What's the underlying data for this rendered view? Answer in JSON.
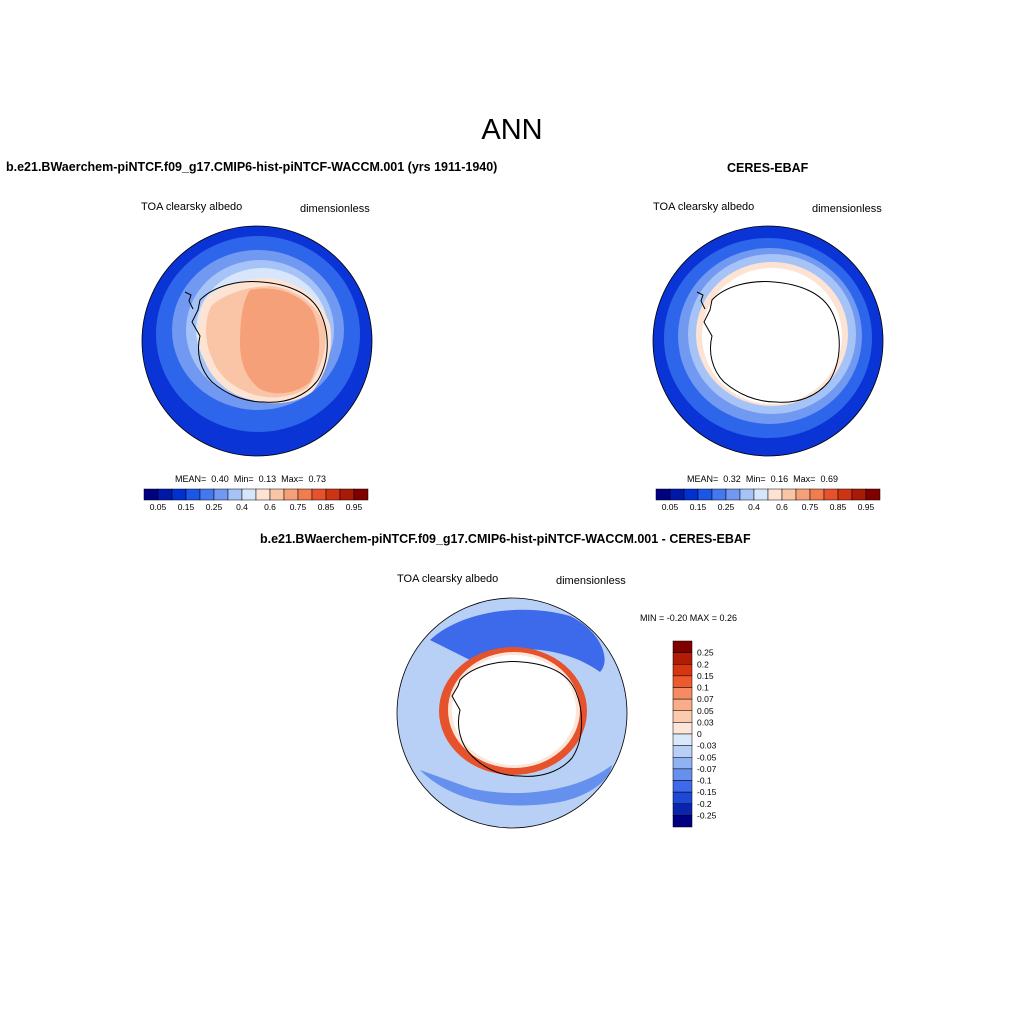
{
  "figure": {
    "title": "ANN"
  },
  "panels": [
    {
      "case_title": "b.e21.BWaerchem-piNTCF.f09_g17.CMIP6-hist-piNTCF-WACCM.001 (yrs 1911-1940)",
      "variable": "TOA clearsky albedo",
      "units": "dimensionless",
      "stats": {
        "mean_label": "MEAN=",
        "mean": "0.40",
        "min_label": "Min=",
        "min": "0.13",
        "max_label": "Max=",
        "max": "0.73"
      }
    },
    {
      "case_title": "CERES-EBAF",
      "variable": "TOA clearsky albedo",
      "units": "dimensionless",
      "stats": {
        "mean_label": "MEAN=",
        "mean": "0.32",
        "min_label": "Min=",
        "min": "0.16",
        "max_label": "Max=",
        "max": "0.69"
      }
    },
    {
      "case_title": "b.e21.BWaerchem-piNTCF.f09_g17.CMIP6-hist-piNTCF-WACCM.001 - CERES-EBAF",
      "variable": "TOA clearsky albedo",
      "units": "dimensionless",
      "stats_text": "MIN =  -0.20 MAX =   0.26"
    }
  ],
  "colorbars": {
    "horizontal": {
      "colors": [
        "#000080",
        "#0018a8",
        "#0030d0",
        "#1c56e6",
        "#4478ee",
        "#7299f2",
        "#a6c3f7",
        "#d7e6fb",
        "#fde3d3",
        "#fac4a6",
        "#f6a079",
        "#f07c50",
        "#e6522c",
        "#cc3412",
        "#a81a06",
        "#800000"
      ],
      "tick_labels": [
        "0.05",
        "0.15",
        "0.25",
        "0.4",
        "0.6",
        "0.75",
        "0.85",
        "0.95"
      ]
    },
    "vertical": {
      "colors": [
        "#800000",
        "#b01c04",
        "#d7360e",
        "#ee5a2e",
        "#f68a62",
        "#f9ac8a",
        "#fbcbb0",
        "#fde6d8",
        "#dbe8fa",
        "#b8d0f6",
        "#90b2f2",
        "#6590ee",
        "#3c6aea",
        "#1e48d8",
        "#0a24b0",
        "#000080"
      ],
      "tick_labels": [
        "0.25",
        "0.2",
        "0.15",
        "0.1",
        "0.07",
        "0.05",
        "0.03",
        "0",
        "-0.03",
        "-0.05",
        "-0.07",
        "-0.1",
        "-0.15",
        "-0.2",
        "-0.25"
      ]
    }
  }
}
